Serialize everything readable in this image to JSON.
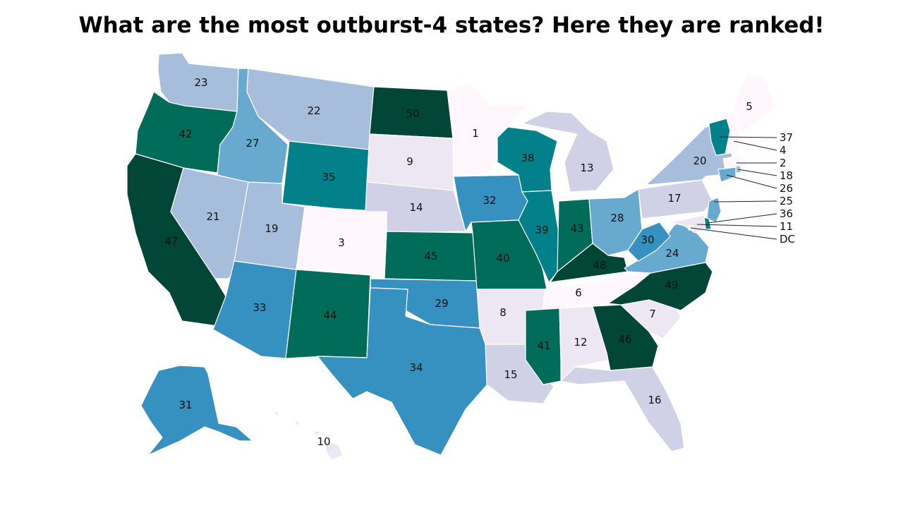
{
  "title": "What are the most outburst-4 states? Here they are ranked!",
  "colors": {
    "scale": [
      "#fff7fb",
      "#ece7f2",
      "#d0d1e6",
      "#a6bddb",
      "#67a9cf",
      "#3690c0",
      "#02818a",
      "#016c59",
      "#014636"
    ],
    "border": "#ffffff",
    "label": "#111111"
  },
  "states": [
    {
      "id": "WA",
      "name": "Washington",
      "rank": 23
    },
    {
      "id": "OR",
      "name": "Oregon",
      "rank": 42
    },
    {
      "id": "CA",
      "name": "California",
      "rank": 47
    },
    {
      "id": "ID",
      "name": "Idaho",
      "rank": 27
    },
    {
      "id": "NV",
      "name": "Nevada",
      "rank": 21
    },
    {
      "id": "MT",
      "name": "Montana",
      "rank": 22
    },
    {
      "id": "WY",
      "name": "Wyoming",
      "rank": 35
    },
    {
      "id": "UT",
      "name": "Utah",
      "rank": 19
    },
    {
      "id": "AZ",
      "name": "Arizona",
      "rank": 33
    },
    {
      "id": "CO",
      "name": "Colorado",
      "rank": 3
    },
    {
      "id": "NM",
      "name": "New Mexico",
      "rank": 44
    },
    {
      "id": "ND",
      "name": "North Dakota",
      "rank": 50
    },
    {
      "id": "SD",
      "name": "South Dakota",
      "rank": 9
    },
    {
      "id": "NE",
      "name": "Nebraska",
      "rank": 14
    },
    {
      "id": "KS",
      "name": "Kansas",
      "rank": 45
    },
    {
      "id": "OK",
      "name": "Oklahoma",
      "rank": 29
    },
    {
      "id": "TX",
      "name": "Texas",
      "rank": 34
    },
    {
      "id": "MN",
      "name": "Minnesota",
      "rank": 1
    },
    {
      "id": "IA",
      "name": "Iowa",
      "rank": 32
    },
    {
      "id": "MO",
      "name": "Missouri",
      "rank": 40
    },
    {
      "id": "AR",
      "name": "Arkansas",
      "rank": 8
    },
    {
      "id": "LA",
      "name": "Louisiana",
      "rank": 15
    },
    {
      "id": "WI",
      "name": "Wisconsin",
      "rank": 38
    },
    {
      "id": "IL",
      "name": "Illinois",
      "rank": 39
    },
    {
      "id": "MI",
      "name": "Michigan",
      "rank": 13
    },
    {
      "id": "IN",
      "name": "Indiana",
      "rank": 43
    },
    {
      "id": "OH",
      "name": "Ohio",
      "rank": 28
    },
    {
      "id": "KY",
      "name": "Kentucky",
      "rank": 48
    },
    {
      "id": "TN",
      "name": "Tennessee",
      "rank": 6
    },
    {
      "id": "MS",
      "name": "Mississippi",
      "rank": 41
    },
    {
      "id": "AL",
      "name": "Alabama",
      "rank": 12
    },
    {
      "id": "GA",
      "name": "Georgia",
      "rank": 46
    },
    {
      "id": "FL",
      "name": "Florida",
      "rank": 16
    },
    {
      "id": "SC",
      "name": "South Carolina",
      "rank": 7
    },
    {
      "id": "NC",
      "name": "North Carolina",
      "rank": 49
    },
    {
      "id": "VA",
      "name": "Virginia",
      "rank": 24
    },
    {
      "id": "WV",
      "name": "West Virginia",
      "rank": 30
    },
    {
      "id": "PA",
      "name": "Pennsylvania",
      "rank": 17
    },
    {
      "id": "NY",
      "name": "New York",
      "rank": 20
    },
    {
      "id": "ME",
      "name": "Maine",
      "rank": 5
    },
    {
      "id": "AK",
      "name": "Alaska",
      "rank": 31
    },
    {
      "id": "HI",
      "name": "Hawaii",
      "rank": 10
    },
    {
      "id": "VT",
      "name": "Vermont",
      "rank": 37
    },
    {
      "id": "NH",
      "name": "New Hampshire",
      "rank": 4
    },
    {
      "id": "MA",
      "name": "Massachusetts",
      "rank": 2
    },
    {
      "id": "RI",
      "name": "Rhode Island",
      "rank": 18
    },
    {
      "id": "CT",
      "name": "Connecticut",
      "rank": 26
    },
    {
      "id": "NJ",
      "name": "New Jersey",
      "rank": 25
    },
    {
      "id": "DE",
      "name": "Delaware",
      "rank": 36
    },
    {
      "id": "MD",
      "name": "Maryland",
      "rank": 11
    },
    {
      "id": "DC",
      "name": "District of Columbia",
      "label": "DC"
    }
  ]
}
